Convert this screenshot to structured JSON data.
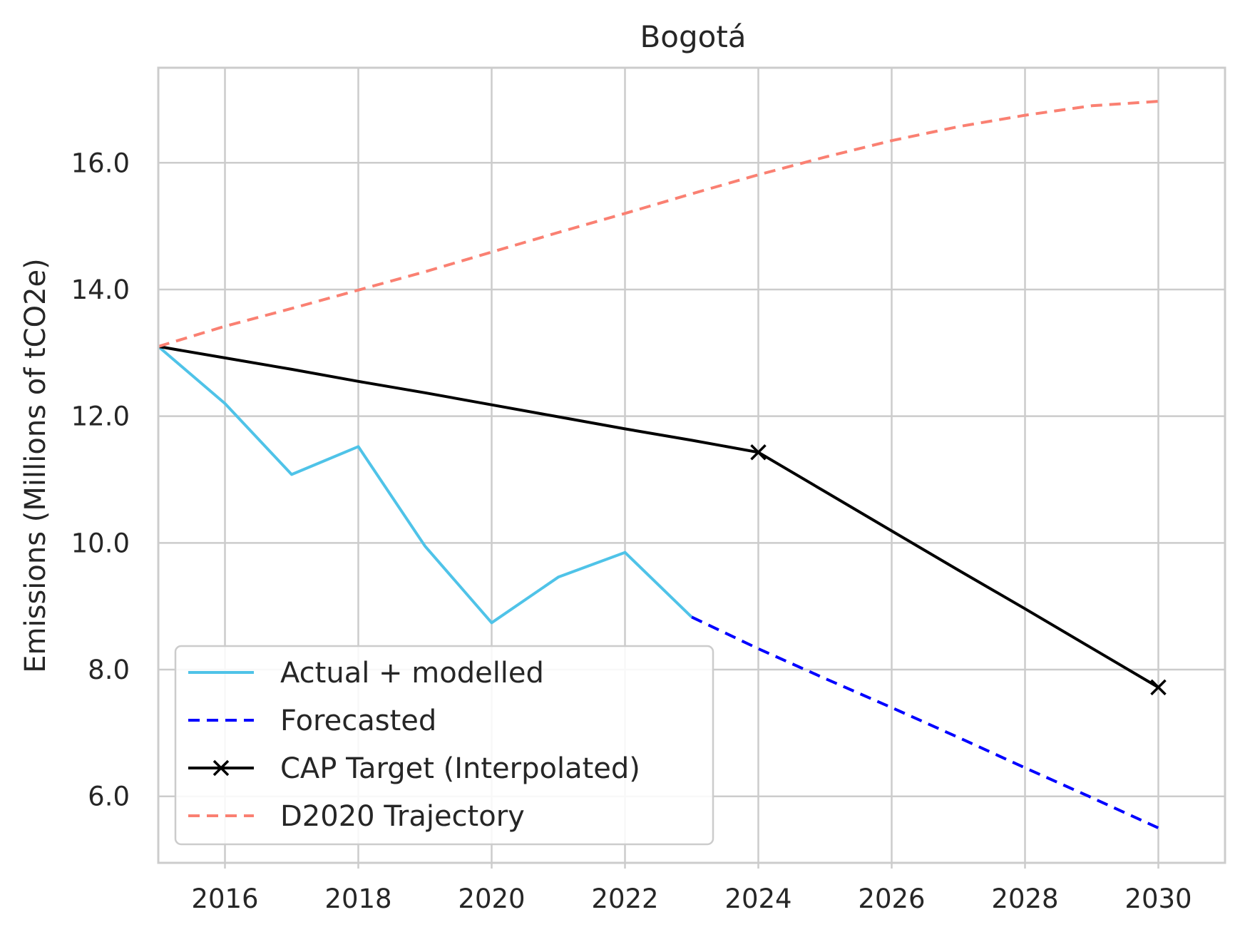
{
  "chart_data": {
    "type": "line",
    "title": "Bogotá",
    "xlabel": "",
    "ylabel": "Emissions (Millions of tCO2e)",
    "xlim": [
      2015,
      2031
    ],
    "ylim": [
      4.95,
      17.5
    ],
    "xticks": [
      2016,
      2018,
      2020,
      2022,
      2024,
      2026,
      2028,
      2030
    ],
    "yticks": [
      6.0,
      8.0,
      10.0,
      12.0,
      14.0,
      16.0
    ],
    "x_tick_labels": [
      "2016",
      "2018",
      "2020",
      "2022",
      "2024",
      "2026",
      "2028",
      "2030"
    ],
    "y_tick_labels": [
      "6.0",
      "8.0",
      "10.0",
      "12.0",
      "14.0",
      "16.0"
    ],
    "grid": true,
    "legend_position": "lower-left",
    "series": [
      {
        "name": "Actual + modelled",
        "color": "#4fc3e8",
        "style": "solid",
        "marker": "none",
        "points": [
          [
            2015,
            13.1
          ],
          [
            2016,
            12.2
          ],
          [
            2017,
            11.08
          ],
          [
            2018,
            11.52
          ],
          [
            2019,
            9.95
          ],
          [
            2020,
            8.74
          ],
          [
            2021,
            9.46
          ],
          [
            2022,
            9.85
          ],
          [
            2023,
            8.83
          ]
        ]
      },
      {
        "name": "Forecasted",
        "color": "#0000ff",
        "style": "dashed",
        "marker": "none",
        "points": [
          [
            2023,
            8.83
          ],
          [
            2024,
            8.33
          ],
          [
            2025,
            7.86
          ],
          [
            2026,
            7.4
          ],
          [
            2027,
            6.93
          ],
          [
            2028,
            6.45
          ],
          [
            2029,
            5.98
          ],
          [
            2030,
            5.5
          ]
        ]
      },
      {
        "name": "CAP Target (Interpolated)",
        "color": "#000000",
        "style": "solid",
        "marker": "x",
        "marker_at": [
          2024,
          2030
        ],
        "points": [
          [
            2015,
            13.1
          ],
          [
            2016,
            12.92
          ],
          [
            2017,
            12.74
          ],
          [
            2018,
            12.55
          ],
          [
            2019,
            12.37
          ],
          [
            2020,
            12.18
          ],
          [
            2021,
            11.99
          ],
          [
            2022,
            11.8
          ],
          [
            2023,
            11.62
          ],
          [
            2024,
            11.43
          ],
          [
            2025,
            10.81
          ],
          [
            2026,
            10.19
          ],
          [
            2027,
            9.57
          ],
          [
            2028,
            8.96
          ],
          [
            2029,
            8.34
          ],
          [
            2030,
            7.72
          ]
        ]
      },
      {
        "name": "D2020 Trajectory",
        "color": "#fa8072",
        "style": "dashed",
        "marker": "none",
        "points": [
          [
            2015,
            13.1
          ],
          [
            2016,
            13.42
          ],
          [
            2017,
            13.7
          ],
          [
            2018,
            13.99
          ],
          [
            2019,
            14.28
          ],
          [
            2020,
            14.59
          ],
          [
            2021,
            14.9
          ],
          [
            2022,
            15.2
          ],
          [
            2023,
            15.51
          ],
          [
            2024,
            15.81
          ],
          [
            2025,
            16.09
          ],
          [
            2026,
            16.35
          ],
          [
            2027,
            16.57
          ],
          [
            2028,
            16.75
          ],
          [
            2029,
            16.9
          ],
          [
            2030,
            16.97
          ]
        ]
      }
    ]
  }
}
